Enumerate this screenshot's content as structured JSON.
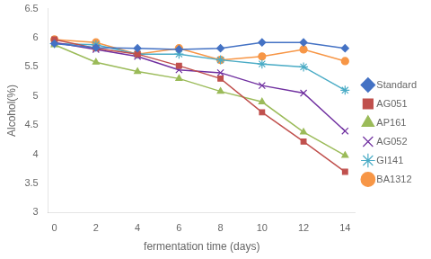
{
  "chart_data": {
    "type": "line",
    "x": [
      0,
      2,
      4,
      6,
      8,
      10,
      12,
      14
    ],
    "series": [
      {
        "name": "Standard",
        "color": "#4472C4",
        "marker": "diamond",
        "values": [
          5.9,
          5.83,
          5.82,
          5.8,
          5.82,
          5.92,
          5.92,
          5.82
        ]
      },
      {
        "name": "AG051",
        "color": "#C0504D",
        "marker": "square",
        "values": [
          5.97,
          5.82,
          5.72,
          5.52,
          5.3,
          4.72,
          4.22,
          3.7
        ]
      },
      {
        "name": "AP161",
        "color": "#9BBB59",
        "marker": "triangle",
        "values": [
          5.88,
          5.58,
          5.42,
          5.3,
          5.08,
          4.9,
          4.38,
          3.98
        ]
      },
      {
        "name": "AG052",
        "color": "#7030A0",
        "marker": "x",
        "values": [
          5.92,
          5.8,
          5.68,
          5.45,
          5.4,
          5.18,
          5.05,
          4.4
        ]
      },
      {
        "name": "GI141",
        "color": "#4BACC6",
        "marker": "star",
        "values": [
          5.9,
          5.88,
          5.72,
          5.72,
          5.62,
          5.55,
          5.5,
          5.1
        ]
      },
      {
        "name": "BA1312",
        "color": "#F79646",
        "marker": "circle",
        "values": [
          5.97,
          5.92,
          5.72,
          5.82,
          5.62,
          5.68,
          5.8,
          5.6
        ]
      }
    ],
    "xlabel": "fermentation time (days)",
    "ylabel": "Alcohol(%)",
    "xlim": [
      -0.3,
      14.5
    ],
    "ylim": [
      3.0,
      6.5
    ],
    "xticks": [
      0,
      2,
      4,
      6,
      8,
      10,
      12,
      14
    ],
    "yticks": [
      3.0,
      3.5,
      4.0,
      4.5,
      5.0,
      5.5,
      6.0,
      6.5
    ],
    "grid": false,
    "legend": "right"
  }
}
